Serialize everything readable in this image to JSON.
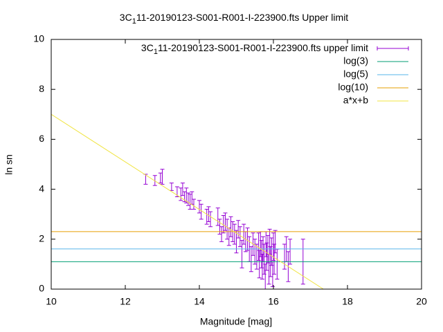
{
  "chart_data": {
    "type": "errorbar",
    "title": {
      "main": "3C",
      "sub": "1",
      "rest": "11-20190123-S001-R001-I-223900.fts Upper limit"
    },
    "xlabel": "Magnitude [mag]",
    "ylabel": "ln sn",
    "xlim": [
      10,
      20
    ],
    "ylim": [
      0,
      10
    ],
    "xticks": [
      10,
      12,
      14,
      16,
      18,
      20
    ],
    "yticks": [
      0,
      2,
      4,
      6,
      8,
      10
    ],
    "legend": "top-right",
    "series": [
      {
        "name": {
          "main": "3C",
          "sub": "1",
          "rest": "11-20190123-S001-R001-I-223900.fts upper limit"
        },
        "kind": "errorbar",
        "color": "#9400d3",
        "x": [
          12.55,
          12.8,
          12.95,
          13.0,
          13.25,
          13.4,
          13.5,
          13.55,
          13.6,
          13.65,
          13.7,
          13.75,
          13.8,
          13.85,
          14.0,
          14.05,
          14.2,
          14.25,
          14.3,
          14.5,
          14.55,
          14.6,
          14.65,
          14.7,
          14.75,
          14.8,
          14.85,
          14.9,
          14.95,
          15.0,
          15.05,
          15.1,
          15.15,
          15.2,
          15.25,
          15.3,
          15.35,
          15.4,
          15.45,
          15.5,
          15.55,
          15.6,
          15.62,
          15.65,
          15.68,
          15.7,
          15.72,
          15.75,
          15.78,
          15.8,
          15.82,
          15.85,
          15.88,
          15.9,
          15.92,
          15.95,
          15.98,
          16.0,
          16.02,
          16.05,
          16.1,
          16.3,
          16.35,
          16.4,
          16.45,
          16.8
        ],
        "values": [
          4.4,
          4.35,
          4.45,
          4.5,
          4.1,
          3.9,
          3.8,
          4.0,
          3.7,
          3.75,
          3.6,
          3.5,
          3.65,
          3.4,
          3.3,
          3.1,
          2.9,
          3.0,
          2.8,
          2.9,
          2.5,
          2.2,
          2.6,
          2.7,
          2.4,
          2.1,
          2.5,
          2.3,
          2.2,
          1.9,
          2.4,
          2.1,
          1.4,
          2.2,
          1.9,
          2.0,
          1.6,
          1.2,
          1.8,
          1.5,
          1.3,
          1.7,
          1.0,
          1.8,
          1.4,
          0.9,
          1.6,
          1.2,
          0.5,
          1.8,
          1.3,
          1.6,
          0.8,
          1.9,
          1.1,
          1.5,
          0.6,
          1.7,
          1.2,
          1.9,
          1.0,
          1.3,
          1.6,
          0.9,
          1.5,
          1.1
        ],
        "errors": [
          0.2,
          0.2,
          0.2,
          0.3,
          0.15,
          0.2,
          0.25,
          0.25,
          0.2,
          0.3,
          0.25,
          0.3,
          0.25,
          0.2,
          0.25,
          0.3,
          0.3,
          0.3,
          0.3,
          0.35,
          0.3,
          0.3,
          0.35,
          0.35,
          0.4,
          0.35,
          0.4,
          0.4,
          0.4,
          0.45,
          0.35,
          0.4,
          0.55,
          0.4,
          0.4,
          0.45,
          0.5,
          0.5,
          0.45,
          0.5,
          0.5,
          0.55,
          0.55,
          0.5,
          0.55,
          0.5,
          0.5,
          0.6,
          0.5,
          0.5,
          0.55,
          0.55,
          0.6,
          0.5,
          0.6,
          0.55,
          0.5,
          0.55,
          0.6,
          0.45,
          0.6,
          0.5,
          0.5,
          0.6,
          0.5,
          0.9
        ]
      },
      {
        "name": "log(3)",
        "kind": "hline",
        "color": "#009e73",
        "value": 1.0986
      },
      {
        "name": "log(5)",
        "kind": "hline",
        "color": "#56b4e9",
        "value": 1.6094
      },
      {
        "name": "log(10)",
        "kind": "hline",
        "color": "#e69f00",
        "value": 2.3026
      },
      {
        "name": "a*x+b",
        "kind": "line",
        "color": "#f0e442",
        "x": [
          10,
          17.35
        ],
        "values": [
          7,
          0
        ]
      }
    ]
  }
}
